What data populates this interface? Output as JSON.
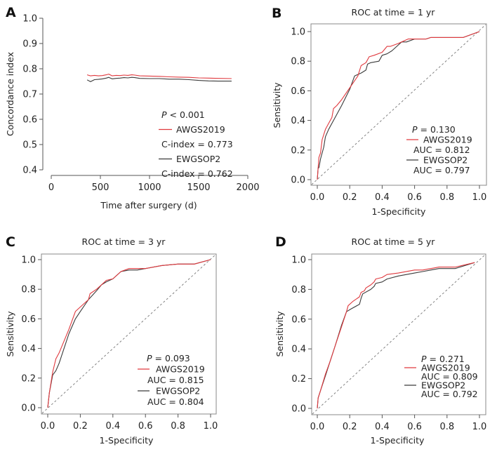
{
  "colors": {
    "awgs": "#e0393e",
    "ewgsop": "#3a3a3a",
    "axis": "#555555",
    "diag": "#777777",
    "box": "#888888"
  },
  "chart_data": [
    {
      "panel": "A",
      "type": "line",
      "title": "",
      "xlabel": "Time after surgery (d)",
      "ylabel": "Concordance index",
      "xlim": [
        0,
        2000
      ],
      "ylim": [
        0.4,
        1.0
      ],
      "xticks": [
        0,
        500,
        1000,
        1500,
        2000
      ],
      "xtick_labels": [
        "0",
        "500",
        "1000",
        "1500",
        "2000"
      ],
      "yticks": [
        0.4,
        0.5,
        0.6,
        0.7,
        0.8,
        0.9,
        1.0
      ],
      "ytick_labels": [
        "0.4",
        "0.5",
        "0.6",
        "0.7",
        "0.8",
        "0.9",
        "1.0"
      ],
      "grid": false,
      "legend_position": "bottom-right",
      "annotation": {
        "p_label": "P",
        "p_text": " < 0.001"
      },
      "series": [
        {
          "name": "AWGS2019",
          "metric_label": "C-index = 0.773",
          "color_key": "awgs",
          "x": [
            365,
            400,
            440,
            480,
            520,
            560,
            585,
            620,
            660,
            700,
            740,
            780,
            820,
            850,
            900,
            1000,
            1100,
            1200,
            1300,
            1400,
            1500,
            1600,
            1700,
            1835
          ],
          "y": [
            0.776,
            0.772,
            0.774,
            0.772,
            0.773,
            0.776,
            0.779,
            0.772,
            0.774,
            0.773,
            0.775,
            0.774,
            0.776,
            0.775,
            0.772,
            0.771,
            0.77,
            0.768,
            0.767,
            0.766,
            0.764,
            0.763,
            0.762,
            0.761
          ]
        },
        {
          "name": "EWGSOP2",
          "metric_label": "C-index = 0.762",
          "color_key": "ewgsop",
          "x": [
            365,
            400,
            440,
            480,
            520,
            560,
            585,
            620,
            660,
            700,
            740,
            780,
            820,
            850,
            900,
            1000,
            1100,
            1200,
            1300,
            1400,
            1500,
            1600,
            1700,
            1835
          ],
          "y": [
            0.756,
            0.749,
            0.757,
            0.758,
            0.76,
            0.763,
            0.766,
            0.76,
            0.762,
            0.763,
            0.765,
            0.764,
            0.766,
            0.765,
            0.762,
            0.761,
            0.761,
            0.759,
            0.759,
            0.757,
            0.754,
            0.752,
            0.751,
            0.751
          ]
        }
      ]
    },
    {
      "panel": "B",
      "type": "line",
      "title": "ROC at time = 1 yr",
      "xlabel": "1-Specificity",
      "ylabel": "Sensitivity",
      "xlim": [
        0,
        1
      ],
      "ylim": [
        0,
        1
      ],
      "xticks": [
        0,
        0.2,
        0.4,
        0.6,
        0.8,
        1.0
      ],
      "xtick_labels": [
        "0.0",
        "0.2",
        "0.4",
        "0.6",
        "0.8",
        "1.0"
      ],
      "yticks": [
        0,
        0.2,
        0.4,
        0.6,
        0.8,
        1.0
      ],
      "ytick_labels": [
        "0.0",
        "0.2",
        "0.4",
        "0.6",
        "0.8",
        "1.0"
      ],
      "grid": false,
      "diagonal": true,
      "legend_position": "bottom-right",
      "annotation": {
        "p_label": "P",
        "p_text": " = 0.130"
      },
      "series": [
        {
          "name": "AWGS2019",
          "metric_label": "AUC = 0.812",
          "color_key": "awgs",
          "x": [
            0,
            0.005,
            0.01,
            0.02,
            0.03,
            0.05,
            0.07,
            0.09,
            0.1,
            0.12,
            0.15,
            0.2,
            0.25,
            0.27,
            0.3,
            0.32,
            0.35,
            0.4,
            0.43,
            0.45,
            0.5,
            0.52,
            0.56,
            0.6,
            0.67,
            0.7,
            0.8,
            0.9,
            1.0
          ],
          "y": [
            0,
            0.08,
            0.15,
            0.18,
            0.27,
            0.34,
            0.38,
            0.42,
            0.48,
            0.5,
            0.54,
            0.62,
            0.7,
            0.77,
            0.79,
            0.83,
            0.84,
            0.86,
            0.9,
            0.9,
            0.92,
            0.93,
            0.95,
            0.95,
            0.95,
            0.96,
            0.96,
            0.96,
            1.0
          ]
        },
        {
          "name": "EWGSOP2",
          "metric_label": "AUC = 0.797",
          "color_key": "ewgsop",
          "x": [
            0,
            0.005,
            0.01,
            0.02,
            0.04,
            0.05,
            0.07,
            0.1,
            0.15,
            0.2,
            0.23,
            0.27,
            0.3,
            0.31,
            0.33,
            0.38,
            0.4,
            0.43,
            0.46,
            0.5,
            0.52,
            0.55,
            0.6,
            0.67,
            0.7,
            0.8,
            0.9,
            1.0
          ],
          "y": [
            0,
            0.08,
            0.08,
            0.14,
            0.22,
            0.29,
            0.34,
            0.4,
            0.5,
            0.61,
            0.7,
            0.72,
            0.74,
            0.78,
            0.79,
            0.8,
            0.84,
            0.85,
            0.87,
            0.91,
            0.93,
            0.93,
            0.95,
            0.95,
            0.96,
            0.96,
            0.96,
            1.0
          ]
        }
      ]
    },
    {
      "panel": "C",
      "type": "line",
      "title": "ROC at time = 3 yr",
      "xlabel": "1-Specificity",
      "ylabel": "Sensitivity",
      "xlim": [
        0,
        1
      ],
      "ylim": [
        0,
        1
      ],
      "xticks": [
        0,
        0.2,
        0.4,
        0.6,
        0.8,
        1.0
      ],
      "xtick_labels": [
        "0.0",
        "0.2",
        "0.4",
        "0.6",
        "0.8",
        "1.0"
      ],
      "yticks": [
        0,
        0.2,
        0.4,
        0.6,
        0.8,
        1.0
      ],
      "ytick_labels": [
        "0.0",
        "0.2",
        "0.4",
        "0.6",
        "0.8",
        "1.0"
      ],
      "grid": false,
      "diagonal": true,
      "legend_position": "bottom-right",
      "annotation": {
        "p_label": "P",
        "p_text": " = 0.093"
      },
      "series": [
        {
          "name": "AWGS2019",
          "metric_label": "AUC = 0.815",
          "color_key": "awgs",
          "x": [
            0,
            0.01,
            0.03,
            0.05,
            0.07,
            0.1,
            0.13,
            0.17,
            0.2,
            0.25,
            0.26,
            0.3,
            0.33,
            0.36,
            0.4,
            0.45,
            0.5,
            0.55,
            0.6,
            0.7,
            0.8,
            0.9,
            1.0
          ],
          "y": [
            0,
            0.1,
            0.24,
            0.33,
            0.37,
            0.45,
            0.53,
            0.65,
            0.68,
            0.73,
            0.77,
            0.8,
            0.83,
            0.86,
            0.87,
            0.92,
            0.94,
            0.94,
            0.94,
            0.96,
            0.97,
            0.97,
            1.0
          ]
        },
        {
          "name": "EWGSOP2",
          "metric_label": "AUC = 0.804",
          "color_key": "ewgsop",
          "x": [
            0,
            0.01,
            0.03,
            0.05,
            0.07,
            0.1,
            0.13,
            0.17,
            0.2,
            0.25,
            0.3,
            0.33,
            0.36,
            0.4,
            0.45,
            0.5,
            0.55,
            0.6,
            0.7,
            0.8,
            0.9,
            1.0
          ],
          "y": [
            0,
            0.1,
            0.22,
            0.25,
            0.3,
            0.4,
            0.5,
            0.6,
            0.65,
            0.73,
            0.79,
            0.83,
            0.85,
            0.87,
            0.92,
            0.93,
            0.93,
            0.94,
            0.96,
            0.97,
            0.97,
            1.0
          ]
        }
      ]
    },
    {
      "panel": "D",
      "type": "line",
      "title": "ROC at time = 5 yr",
      "xlabel": "1-Specificity",
      "ylabel": "Sensitivity",
      "xlim": [
        0,
        1
      ],
      "ylim": [
        0,
        1
      ],
      "xticks": [
        0,
        0.2,
        0.4,
        0.6,
        0.8,
        1.0
      ],
      "xtick_labels": [
        "0.0",
        "0.2",
        "0.4",
        "0.6",
        "0.8",
        "1.0"
      ],
      "yticks": [
        0,
        0.2,
        0.4,
        0.6,
        0.8,
        1.0
      ],
      "ytick_labels": [
        "0.0",
        "0.2",
        "0.4",
        "0.6",
        "0.8",
        "1.0"
      ],
      "grid": false,
      "diagonal": true,
      "legend_position": "bottom-right",
      "annotation": {
        "p_label": "P",
        "p_text": " = 0.271"
      },
      "series": [
        {
          "name": "AWGS2019",
          "metric_label": "AUC = 0.809",
          "color_key": "awgs",
          "x": [
            0,
            0.005,
            0.02,
            0.05,
            0.08,
            0.11,
            0.15,
            0.18,
            0.19,
            0.22,
            0.26,
            0.27,
            0.29,
            0.3,
            0.33,
            0.35,
            0.36,
            0.4,
            0.43,
            0.5,
            0.6,
            0.65,
            0.7,
            0.75,
            0.85,
            0.97
          ],
          "y": [
            0,
            0.07,
            0.12,
            0.23,
            0.32,
            0.42,
            0.55,
            0.65,
            0.69,
            0.72,
            0.75,
            0.78,
            0.79,
            0.81,
            0.83,
            0.85,
            0.87,
            0.88,
            0.9,
            0.91,
            0.93,
            0.93,
            0.94,
            0.95,
            0.95,
            0.98
          ]
        },
        {
          "name": "EWGSOP2",
          "metric_label": "AUC = 0.792",
          "color_key": "ewgsop",
          "x": [
            0,
            0.005,
            0.02,
            0.05,
            0.08,
            0.11,
            0.15,
            0.18,
            0.21,
            0.26,
            0.27,
            0.28,
            0.33,
            0.35,
            0.36,
            0.4,
            0.43,
            0.5,
            0.6,
            0.65,
            0.7,
            0.75,
            0.85,
            0.97
          ],
          "y": [
            0,
            0.07,
            0.12,
            0.22,
            0.32,
            0.42,
            0.56,
            0.65,
            0.67,
            0.7,
            0.74,
            0.77,
            0.8,
            0.82,
            0.84,
            0.85,
            0.87,
            0.89,
            0.91,
            0.92,
            0.93,
            0.94,
            0.94,
            0.98
          ]
        }
      ]
    }
  ]
}
